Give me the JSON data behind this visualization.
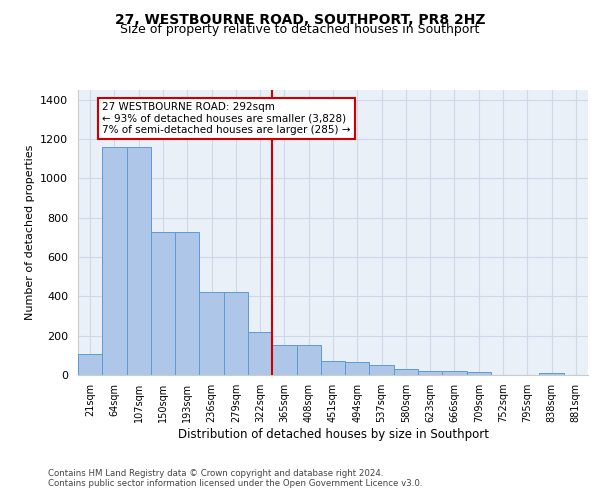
{
  "title1": "27, WESTBOURNE ROAD, SOUTHPORT, PR8 2HZ",
  "title2": "Size of property relative to detached houses in Southport",
  "xlabel": "Distribution of detached houses by size in Southport",
  "ylabel": "Number of detached properties",
  "footer1": "Contains HM Land Registry data © Crown copyright and database right 2024.",
  "footer2": "Contains public sector information licensed under the Open Government Licence v3.0.",
  "categories": [
    "21sqm",
    "64sqm",
    "107sqm",
    "150sqm",
    "193sqm",
    "236sqm",
    "279sqm",
    "322sqm",
    "365sqm",
    "408sqm",
    "451sqm",
    "494sqm",
    "537sqm",
    "580sqm",
    "623sqm",
    "666sqm",
    "709sqm",
    "752sqm",
    "795sqm",
    "838sqm",
    "881sqm"
  ],
  "bar_heights": [
    107,
    1160,
    1160,
    730,
    730,
    420,
    420,
    220,
    152,
    152,
    70,
    68,
    50,
    32,
    22,
    20,
    15,
    0,
    0,
    12,
    0
  ],
  "bar_color": "#aec6e8",
  "bar_edge_color": "#5b9bd5",
  "grid_color": "#d0d8e8",
  "background_color": "#eaf0f8",
  "vline_color": "#cc0000",
  "vline_pos": 7.5,
  "annotation_text": "27 WESTBOURNE ROAD: 292sqm\n← 93% of detached houses are smaller (3,828)\n7% of semi-detached houses are larger (285) →",
  "ann_box_color": "#cc0000",
  "ylim": [
    0,
    1450
  ],
  "yticks": [
    0,
    200,
    400,
    600,
    800,
    1000,
    1200,
    1400
  ],
  "title1_fontsize": 10,
  "title2_fontsize": 9,
  "ylabel_fontsize": 8,
  "xlabel_fontsize": 8.5,
  "tick_fontsize": 7,
  "ann_fontsize": 7.5,
  "footer_fontsize": 6.2
}
